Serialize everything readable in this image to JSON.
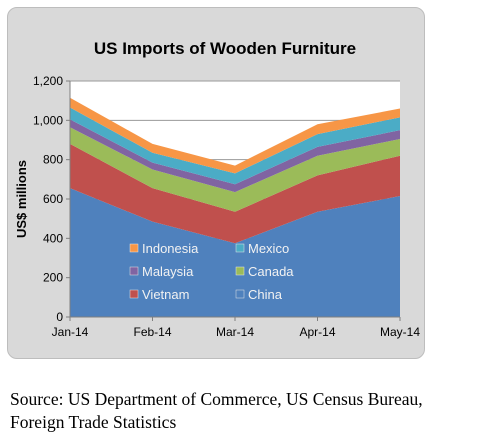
{
  "chart_data": {
    "type": "area",
    "stacked": true,
    "title": "US Imports  of Wooden Furniture",
    "ylabel": "US$ millions",
    "xlabel": "",
    "categories": [
      "Jan-14",
      "Feb-14",
      "Mar-14",
      "Apr-14",
      "May-14"
    ],
    "ylim": [
      0,
      1200
    ],
    "yticks": [
      "0",
      "200",
      "400",
      "600",
      "800",
      "1,000",
      "1,200"
    ],
    "ytick_values": [
      0,
      200,
      400,
      600,
      800,
      1000,
      1200
    ],
    "grid": true,
    "legend_position": "inside-bottom",
    "series": [
      {
        "name": "China",
        "color": "#4f81bd",
        "values": [
          655,
          485,
          375,
          535,
          615
        ]
      },
      {
        "name": "Vietnam",
        "color": "#c0504d",
        "values": [
          225,
          170,
          160,
          185,
          205
        ]
      },
      {
        "name": "Canada",
        "color": "#9bbb59",
        "values": [
          85,
          95,
          100,
          100,
          85
        ]
      },
      {
        "name": "Malaysia",
        "color": "#8064a2",
        "values": [
          40,
          35,
          40,
          45,
          45
        ]
      },
      {
        "name": "Mexico",
        "color": "#4bacc6",
        "values": [
          60,
          50,
          55,
          65,
          65
        ]
      },
      {
        "name": "Indonesia",
        "color": "#f79646",
        "values": [
          50,
          45,
          40,
          50,
          45
        ]
      }
    ],
    "legend": [
      {
        "name": "Indonesia",
        "color": "#f79646"
      },
      {
        "name": "Mexico",
        "color": "#4bacc6"
      },
      {
        "name": "Malaysia",
        "color": "#8064a2"
      },
      {
        "name": "Canada",
        "color": "#9bbb59"
      },
      {
        "name": "Vietnam",
        "color": "#c0504d"
      },
      {
        "name": "China",
        "color": "#4f81bd"
      }
    ]
  },
  "source": "Source: US Department of Commerce, US Census Bureau,\nForeign Trade Statistics"
}
